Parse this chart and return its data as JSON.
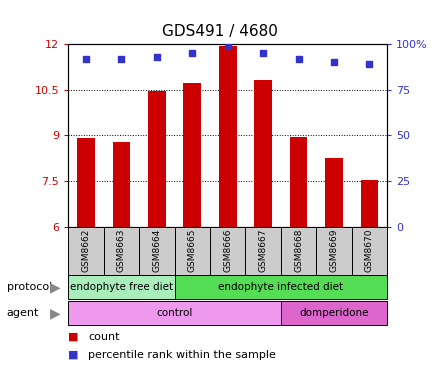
{
  "title": "GDS491 / 4680",
  "samples": [
    "GSM8662",
    "GSM8663",
    "GSM8664",
    "GSM8665",
    "GSM8666",
    "GSM8667",
    "GSM8668",
    "GSM8669",
    "GSM8670"
  ],
  "bar_values": [
    8.9,
    8.8,
    10.47,
    10.73,
    11.93,
    10.83,
    8.95,
    8.25,
    7.53
  ],
  "percentile_values": [
    92,
    92,
    93,
    95,
    99,
    95,
    92,
    90,
    89
  ],
  "ylim_left": [
    6,
    12
  ],
  "ylim_right": [
    0,
    100
  ],
  "yticks_left": [
    6,
    7.5,
    9,
    10.5,
    12
  ],
  "yticks_right": [
    0,
    25,
    50,
    75,
    100
  ],
  "bar_color": "#cc0000",
  "dot_color": "#3333cc",
  "bar_width": 0.5,
  "protocol_groups": [
    {
      "label": "endophyte free diet",
      "start": 0,
      "end": 3,
      "color": "#aaeebb"
    },
    {
      "label": "endophyte infected diet",
      "start": 3,
      "end": 9,
      "color": "#55dd55"
    }
  ],
  "agent_groups": [
    {
      "label": "control",
      "start": 0,
      "end": 6,
      "color": "#ee99ee"
    },
    {
      "label": "domperidone",
      "start": 6,
      "end": 9,
      "color": "#dd66cc"
    }
  ],
  "background_color": "#ffffff",
  "plot_bg_color": "#ffffff",
  "tick_label_color_left": "#cc0000",
  "tick_label_color_right": "#3333cc",
  "sample_box_color": "#cccccc",
  "title_fontsize": 11
}
